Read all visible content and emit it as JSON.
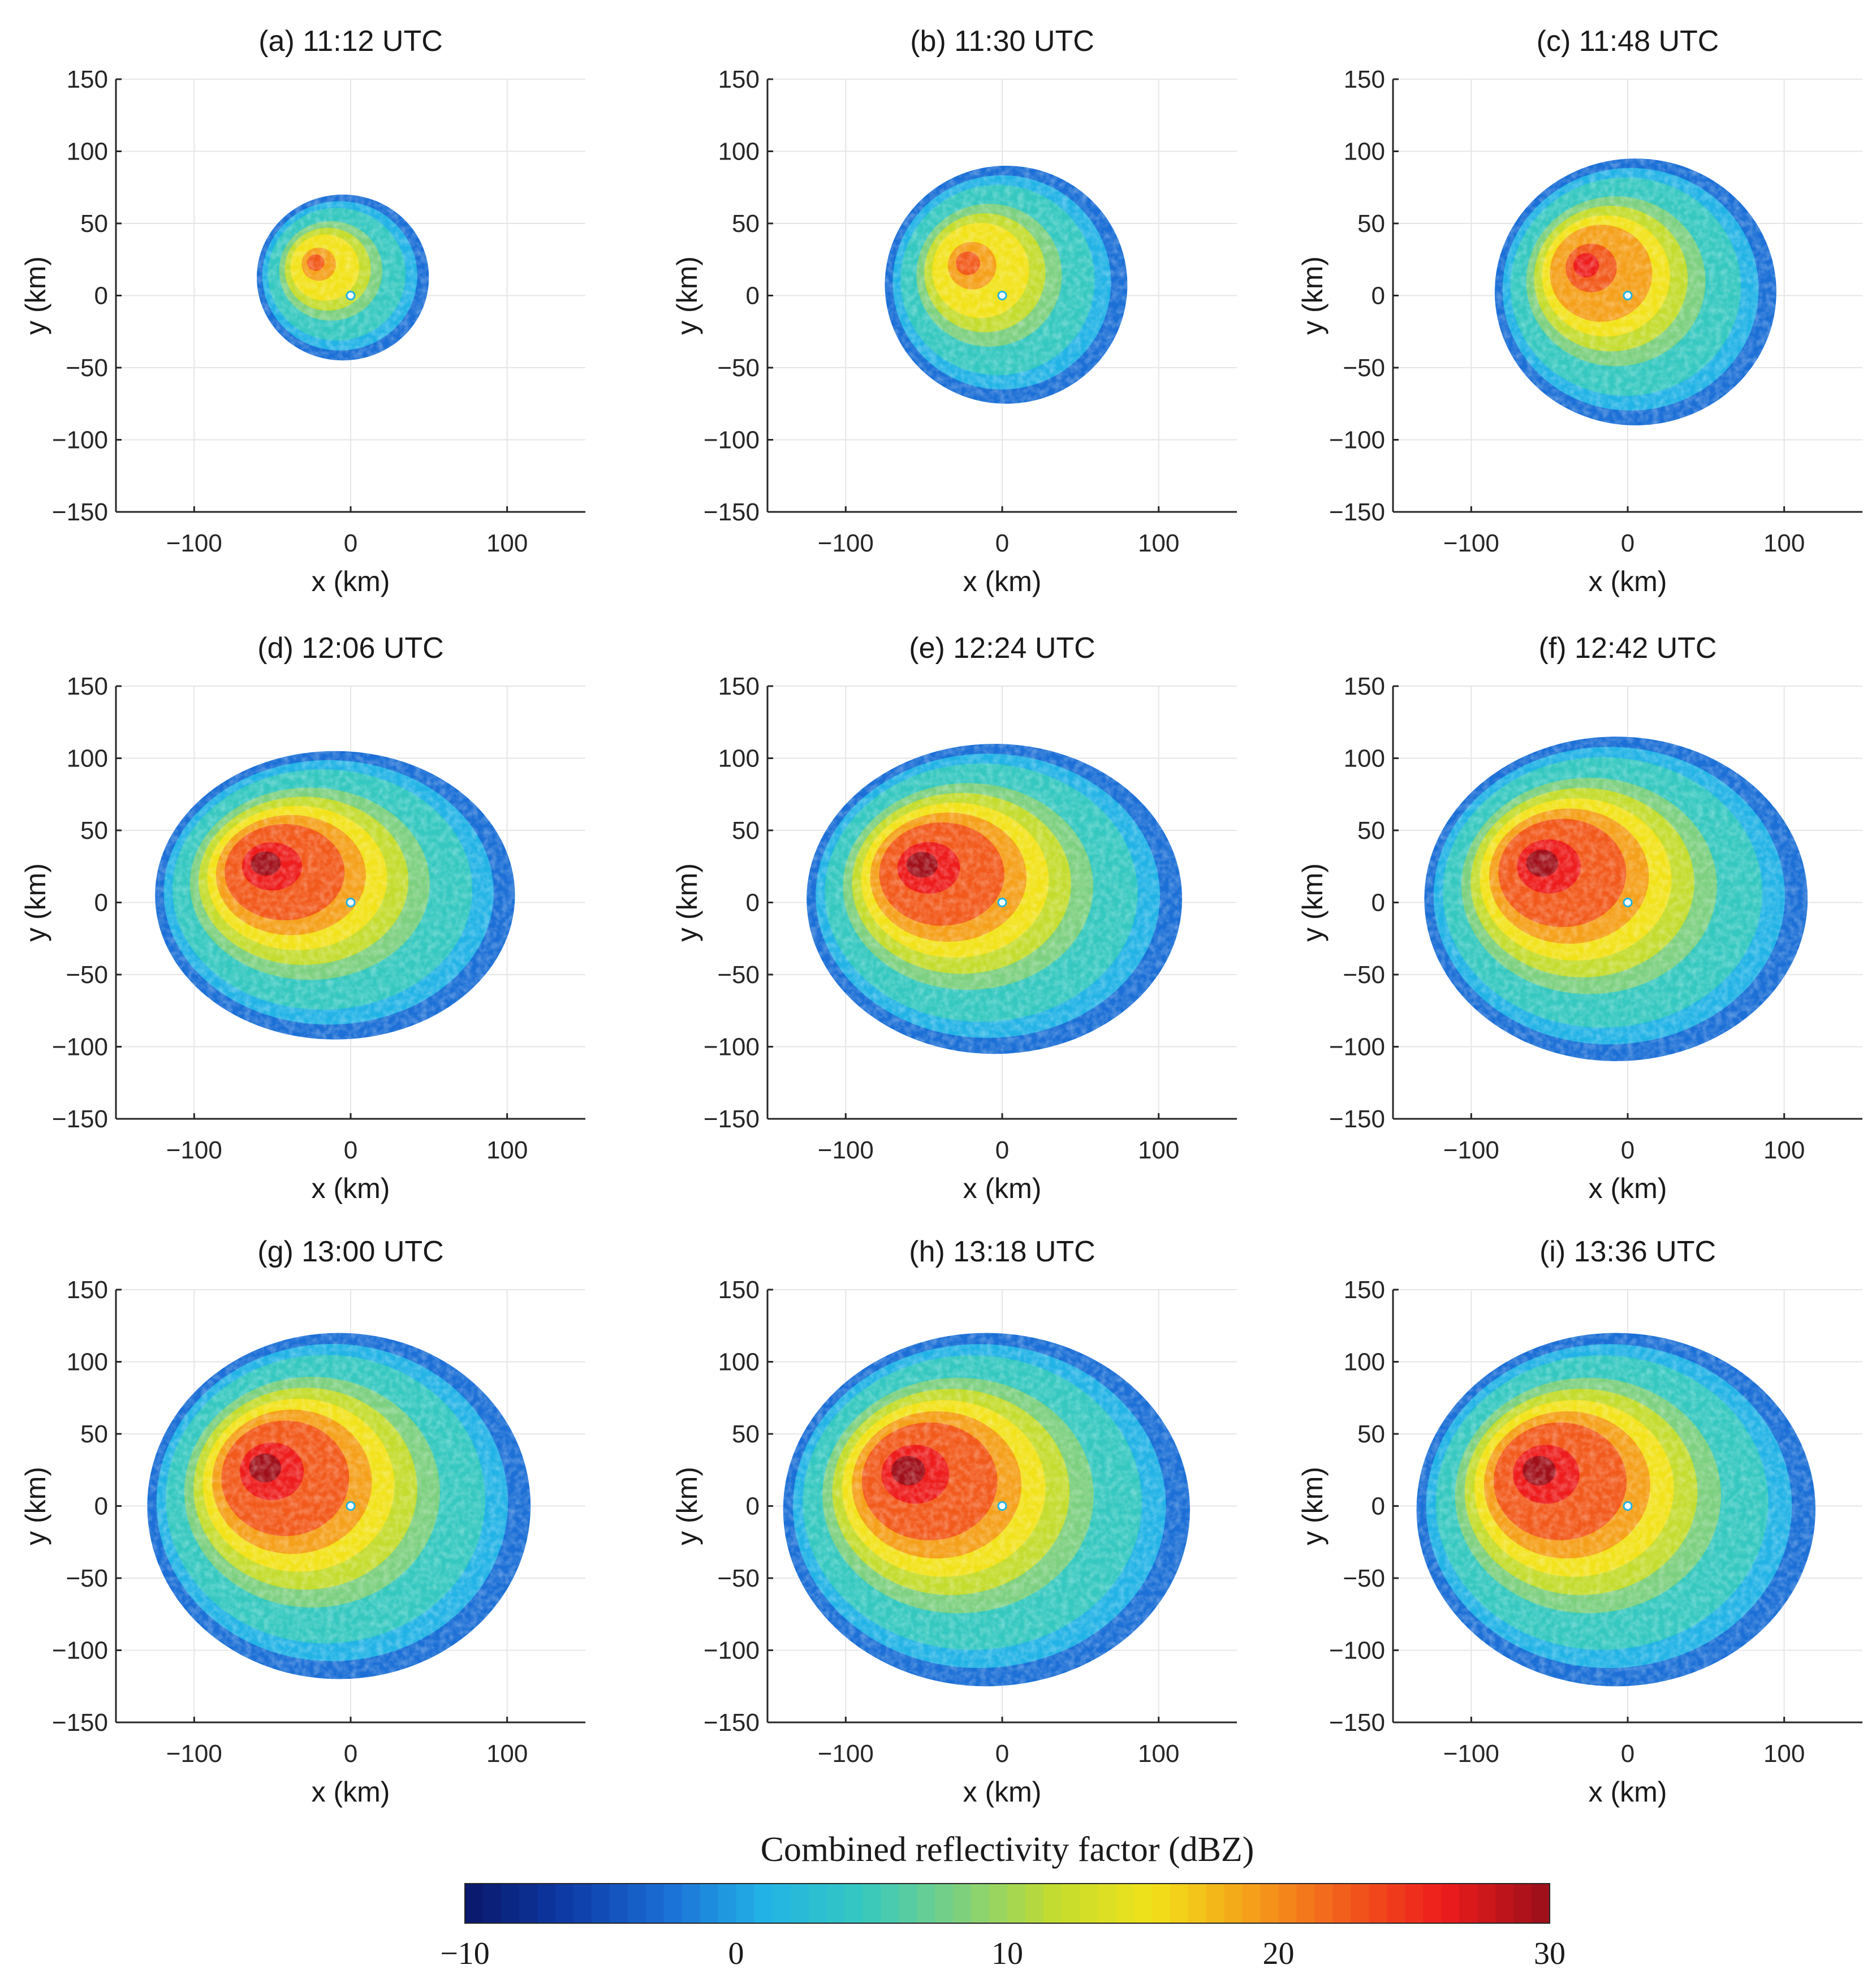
{
  "chart_data": [
    {
      "type": "heatmap",
      "panel": "a",
      "title": "(a) 11:12 UTC",
      "xlabel": "x (km)",
      "ylabel": "y (km)",
      "xlim": [
        -150,
        150
      ],
      "ylim": [
        -150,
        150
      ],
      "xticks": [
        "−100",
        "0",
        "100"
      ],
      "yticks": [
        "150",
        "100",
        "50",
        "0",
        "−50",
        "−100",
        "−150"
      ],
      "grid": true,
      "echo_extent_km": {
        "west": -60,
        "east": 50,
        "north": 70,
        "south": -45
      },
      "max_dBZ_approx": 22
    },
    {
      "type": "heatmap",
      "panel": "b",
      "title": "(b) 11:30 UTC",
      "xlabel": "x (km)",
      "ylabel": "y (km)",
      "xlim": [
        -150,
        150
      ],
      "ylim": [
        -150,
        150
      ],
      "xticks": [
        "−100",
        "0",
        "100"
      ],
      "yticks": [
        "150",
        "100",
        "50",
        "0",
        "−50",
        "−100",
        "−150"
      ],
      "grid": true,
      "echo_extent_km": {
        "west": -75,
        "east": 80,
        "north": 90,
        "south": -75
      },
      "max_dBZ_approx": 22
    },
    {
      "type": "heatmap",
      "panel": "c",
      "title": "(c) 11:48 UTC",
      "xlabel": "x (km)",
      "ylabel": "y (km)",
      "xlim": [
        -150,
        150
      ],
      "ylim": [
        -150,
        150
      ],
      "xticks": [
        "−100",
        "0",
        "100"
      ],
      "yticks": [
        "150",
        "100",
        "50",
        "0",
        "−50",
        "−100",
        "−150"
      ],
      "grid": true,
      "echo_extent_km": {
        "west": -85,
        "east": 95,
        "north": 95,
        "south": -90
      },
      "max_dBZ_approx": 28
    },
    {
      "type": "heatmap",
      "panel": "d",
      "title": "(d) 12:06 UTC",
      "xlabel": "x (km)",
      "ylabel": "y (km)",
      "xlim": [
        -150,
        150
      ],
      "ylim": [
        -150,
        150
      ],
      "xticks": [
        "−100",
        "0",
        "100"
      ],
      "yticks": [
        "150",
        "100",
        "50",
        "0",
        "−50",
        "−100",
        "−150"
      ],
      "grid": true,
      "echo_extent_km": {
        "west": -125,
        "east": 105,
        "north": 105,
        "south": -95
      },
      "max_dBZ_approx": 30
    },
    {
      "type": "heatmap",
      "panel": "e",
      "title": "(e) 12:24 UTC",
      "xlabel": "x (km)",
      "ylabel": "y (km)",
      "xlim": [
        -150,
        150
      ],
      "ylim": [
        -150,
        150
      ],
      "xticks": [
        "−100",
        "0",
        "100"
      ],
      "yticks": [
        "150",
        "100",
        "50",
        "0",
        "−50",
        "−100",
        "−150"
      ],
      "grid": true,
      "echo_extent_km": {
        "west": -125,
        "east": 115,
        "north": 110,
        "south": -105
      },
      "max_dBZ_approx": 30
    },
    {
      "type": "heatmap",
      "panel": "f",
      "title": "(f) 12:42 UTC",
      "xlabel": "x (km)",
      "ylabel": "y (km)",
      "xlim": [
        -150,
        150
      ],
      "ylim": [
        -150,
        150
      ],
      "xticks": [
        "−100",
        "0",
        "100"
      ],
      "yticks": [
        "150",
        "100",
        "50",
        "0",
        "−50",
        "−100",
        "−150"
      ],
      "grid": true,
      "echo_extent_km": {
        "west": -130,
        "east": 115,
        "north": 115,
        "south": -110
      },
      "max_dBZ_approx": 30
    },
    {
      "type": "heatmap",
      "panel": "g",
      "title": "(g) 13:00 UTC",
      "xlabel": "x (km)",
      "ylabel": "y (km)",
      "xlim": [
        -150,
        150
      ],
      "ylim": [
        -150,
        150
      ],
      "xticks": [
        "−100",
        "0",
        "100"
      ],
      "yticks": [
        "150",
        "100",
        "50",
        "0",
        "−50",
        "−100",
        "−150"
      ],
      "grid": true,
      "echo_extent_km": {
        "west": -130,
        "east": 115,
        "north": 120,
        "south": -120
      },
      "max_dBZ_approx": 30
    },
    {
      "type": "heatmap",
      "panel": "h",
      "title": "(h) 13:18 UTC",
      "xlabel": "x (km)",
      "ylabel": "y (km)",
      "xlim": [
        -150,
        150
      ],
      "ylim": [
        -150,
        150
      ],
      "xticks": [
        "−100",
        "0",
        "100"
      ],
      "yticks": [
        "150",
        "100",
        "50",
        "0",
        "−50",
        "−100",
        "−150"
      ],
      "grid": true,
      "echo_extent_km": {
        "west": -140,
        "east": 120,
        "north": 120,
        "south": -125
      },
      "max_dBZ_approx": 30
    },
    {
      "type": "heatmap",
      "panel": "i",
      "title": "(i) 13:36 UTC",
      "xlabel": "x (km)",
      "ylabel": "y (km)",
      "xlim": [
        -150,
        150
      ],
      "ylim": [
        -150,
        150
      ],
      "xticks": [
        "−100",
        "0",
        "100"
      ],
      "yticks": [
        "150",
        "100",
        "50",
        "0",
        "−50",
        "−100",
        "−150"
      ],
      "grid": true,
      "echo_extent_km": {
        "west": -135,
        "east": 120,
        "north": 120,
        "south": -125
      },
      "max_dBZ_approx": 30
    }
  ],
  "colorbar": {
    "title": "Combined reflectivity factor (dBZ)",
    "range": [
      -10,
      30
    ],
    "ticks": [
      "−10",
      "0",
      "10",
      "20",
      "30"
    ],
    "colormap": [
      "#0a1a6e",
      "#0d3ca8",
      "#1b6fd6",
      "#22b3e6",
      "#35c8c0",
      "#7dd080",
      "#c4dc2e",
      "#f2e21a",
      "#f5a01a",
      "#f25a1c",
      "#ee1c1c",
      "#a0101a"
    ]
  },
  "colors": {
    "axes": "#262626",
    "grid": "#e6e6e6",
    "background": "#ffffff"
  }
}
